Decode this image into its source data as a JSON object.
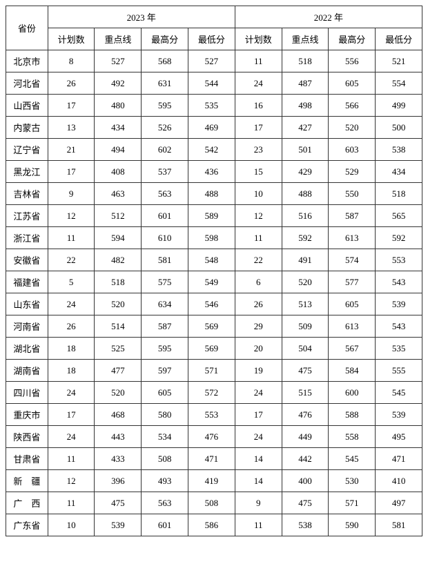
{
  "table": {
    "type": "table",
    "header": {
      "province": "省份",
      "year2023": "2023 年",
      "year2022": "2022 年",
      "sub": {
        "plan": "计划数",
        "keyline": "重点线",
        "max": "最高分",
        "min": "最低分"
      }
    },
    "columns": [
      "省份",
      "计划数",
      "重点线",
      "最高分",
      "最低分",
      "计划数",
      "重点线",
      "最高分",
      "最低分"
    ],
    "rows": [
      [
        "北京市",
        "8",
        "527",
        "568",
        "527",
        "11",
        "518",
        "556",
        "521"
      ],
      [
        "河北省",
        "26",
        "492",
        "631",
        "544",
        "24",
        "487",
        "605",
        "554"
      ],
      [
        "山西省",
        "17",
        "480",
        "595",
        "535",
        "16",
        "498",
        "566",
        "499"
      ],
      [
        "内蒙古",
        "13",
        "434",
        "526",
        "469",
        "17",
        "427",
        "520",
        "500"
      ],
      [
        "辽宁省",
        "21",
        "494",
        "602",
        "542",
        "23",
        "501",
        "603",
        "538"
      ],
      [
        "黑龙江",
        "17",
        "408",
        "537",
        "436",
        "15",
        "429",
        "529",
        "434"
      ],
      [
        "吉林省",
        "9",
        "463",
        "563",
        "488",
        "10",
        "488",
        "550",
        "518"
      ],
      [
        "江苏省",
        "12",
        "512",
        "601",
        "589",
        "12",
        "516",
        "587",
        "565"
      ],
      [
        "浙江省",
        "11",
        "594",
        "610",
        "598",
        "11",
        "592",
        "613",
        "592"
      ],
      [
        "安徽省",
        "22",
        "482",
        "581",
        "548",
        "22",
        "491",
        "574",
        "553"
      ],
      [
        "福建省",
        "5",
        "518",
        "575",
        "549",
        "6",
        "520",
        "577",
        "543"
      ],
      [
        "山东省",
        "24",
        "520",
        "634",
        "546",
        "26",
        "513",
        "605",
        "539"
      ],
      [
        "河南省",
        "26",
        "514",
        "587",
        "569",
        "29",
        "509",
        "613",
        "543"
      ],
      [
        "湖北省",
        "18",
        "525",
        "595",
        "569",
        "20",
        "504",
        "567",
        "535"
      ],
      [
        "湖南省",
        "18",
        "477",
        "597",
        "571",
        "19",
        "475",
        "584",
        "555"
      ],
      [
        "四川省",
        "24",
        "520",
        "605",
        "572",
        "24",
        "515",
        "600",
        "545"
      ],
      [
        "重庆市",
        "17",
        "468",
        "580",
        "553",
        "17",
        "476",
        "588",
        "539"
      ],
      [
        "陕西省",
        "24",
        "443",
        "534",
        "476",
        "24",
        "449",
        "558",
        "495"
      ],
      [
        "甘肃省",
        "11",
        "433",
        "508",
        "471",
        "14",
        "442",
        "545",
        "471"
      ],
      [
        "新　疆",
        "12",
        "396",
        "493",
        "419",
        "14",
        "400",
        "530",
        "410"
      ],
      [
        "广　西",
        "11",
        "475",
        "563",
        "508",
        "9",
        "475",
        "571",
        "497"
      ],
      [
        "广东省",
        "10",
        "539",
        "601",
        "586",
        "11",
        "538",
        "590",
        "581"
      ]
    ],
    "border_color": "#333333",
    "background_color": "#ffffff",
    "font_size": 13
  }
}
